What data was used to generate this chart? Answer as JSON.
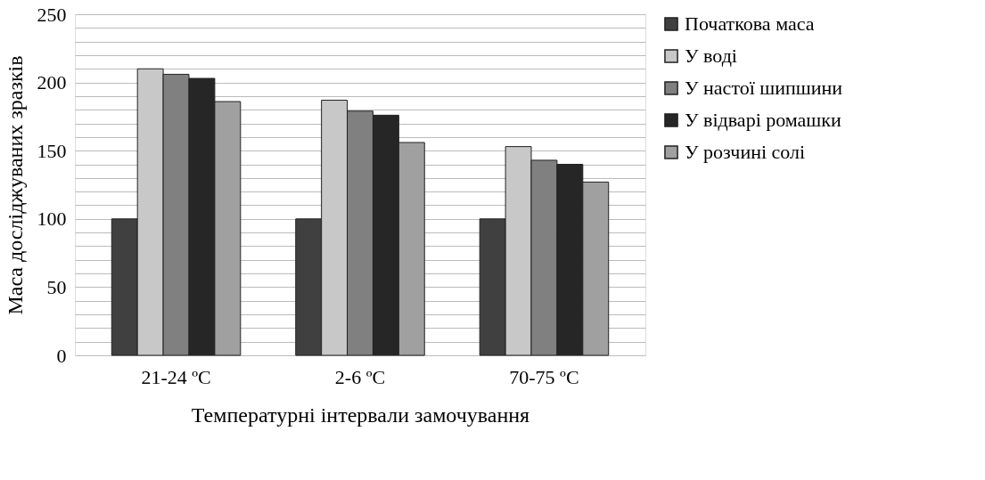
{
  "chart_data": {
    "type": "bar",
    "xlabel": "Температурні інтервали замочування",
    "ylabel": "Маса досліджуваних зразків",
    "categories": [
      "21-24 ºC",
      "2-6 ºC",
      "70-75 ºC"
    ],
    "series": [
      {
        "name": "Початкова маса",
        "color": "#404040",
        "values": [
          100,
          100,
          100
        ]
      },
      {
        "name": "У воді",
        "color": "#c8c8c8",
        "values": [
          210,
          187,
          153
        ]
      },
      {
        "name": "У настої шипшини",
        "color": "#808080",
        "values": [
          206,
          179,
          143
        ]
      },
      {
        "name": "У відварі ромашки",
        "color": "#262626",
        "values": [
          203,
          176,
          140
        ]
      },
      {
        "name": "У розчині солі",
        "color": "#a0a0a0",
        "values": [
          186,
          156,
          127
        ]
      }
    ],
    "ylim": [
      0,
      250
    ],
    "yticks": [
      0,
      {
        "value": 10,
        "label": null
      },
      {
        "value": 20,
        "label": null
      },
      {
        "value": 30,
        "label": null
      },
      {
        "value": 40,
        "label": null
      },
      50,
      {
        "value": 60,
        "label": null
      },
      {
        "value": 70,
        "label": null
      },
      {
        "value": 80,
        "label": null
      },
      {
        "value": 90,
        "label": null
      },
      100,
      {
        "value": 110,
        "label": null
      },
      {
        "value": 120,
        "label": null
      },
      {
        "value": 130,
        "label": null
      },
      {
        "value": 140,
        "label": null
      },
      150,
      {
        "value": 160,
        "label": null
      },
      {
        "value": 170,
        "label": null
      },
      {
        "value": 180,
        "label": null
      },
      {
        "value": 190,
        "label": null
      },
      200,
      {
        "value": 210,
        "label": null
      },
      {
        "value": 220,
        "label": null
      },
      {
        "value": 230,
        "label": null
      },
      {
        "value": 240,
        "label": null
      },
      250
    ],
    "grid": true,
    "legend": "right"
  }
}
